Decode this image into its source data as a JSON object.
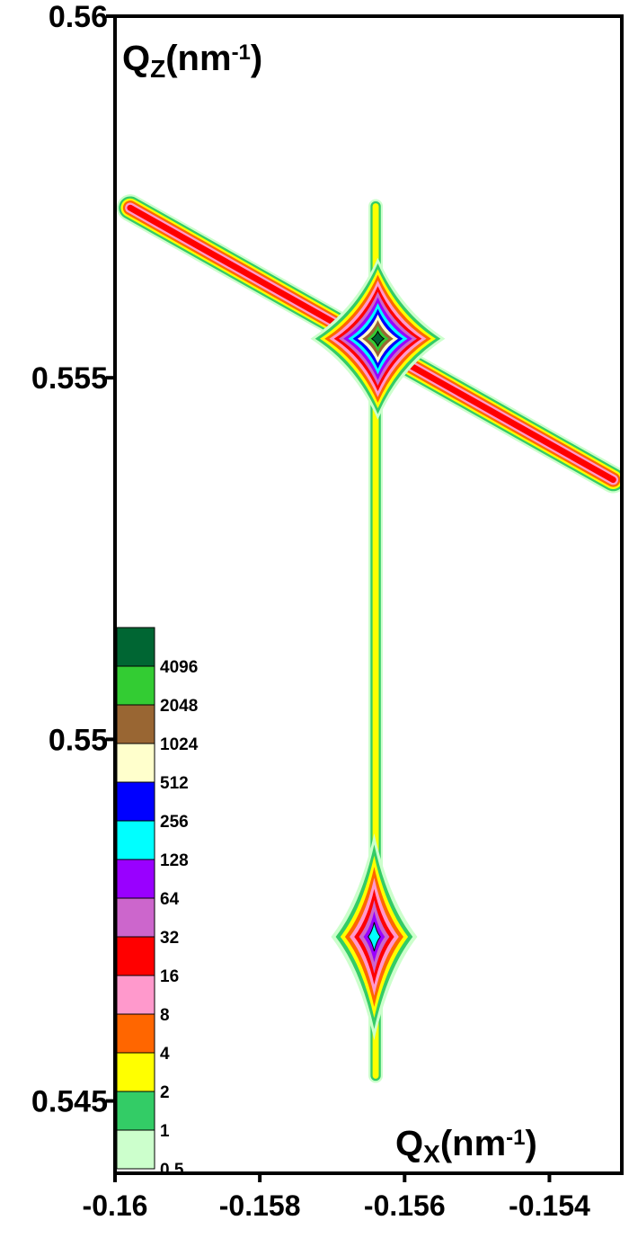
{
  "chart_data": {
    "type": "contour",
    "xlabel": [
      "Q",
      "X",
      "(nm",
      "-1",
      ")"
    ],
    "ylabel": [
      "Q",
      "Z",
      "(nm",
      "-1",
      ")"
    ],
    "xlim": [
      -0.16,
      -0.153
    ],
    "ylim": [
      0.544,
      0.56
    ],
    "xticks": [
      -0.16,
      -0.158,
      -0.156,
      -0.154
    ],
    "yticks": [
      0.545,
      0.55,
      0.555,
      0.56
    ],
    "levels": [
      0.5,
      1,
      2,
      4,
      8,
      16,
      32,
      64,
      128,
      256,
      512,
      1024,
      2048,
      4096
    ],
    "colors": [
      "#ccffcc",
      "#33cc66",
      "#ffff00",
      "#ff6600",
      "#ff99cc",
      "#ff0000",
      "#cc66cc",
      "#9900ff",
      "#00ffff",
      "#0000ff",
      "#ffffcc",
      "#996633",
      "#33cc33",
      "#006633"
    ],
    "peaks": [
      {
        "x": -0.15637,
        "y": 0.55554,
        "level": 4096
      },
      {
        "x": -0.15642,
        "y": 0.54727,
        "level": 128
      }
    ],
    "streaks": [
      {
        "x": [
          -0.15979,
          -0.15312
        ],
        "y": [
          0.55735,
          0.55359
        ],
        "level": 16
      },
      {
        "x": [
          -0.1564,
          -0.1564
        ],
        "y": [
          0.55737,
          0.54535
        ],
        "level": 2
      }
    ]
  }
}
